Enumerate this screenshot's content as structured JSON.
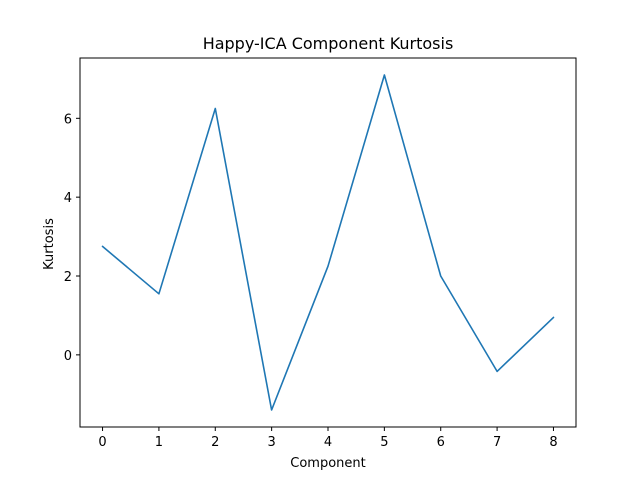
{
  "chart_data": {
    "type": "line",
    "title": "Happy-ICA Component Kurtosis",
    "xlabel": "Component",
    "ylabel": "Kurtosis",
    "x": [
      0,
      1,
      2,
      3,
      4,
      5,
      6,
      7,
      8
    ],
    "series": [
      {
        "values": [
          2.75,
          1.55,
          6.25,
          -1.4,
          2.25,
          7.1,
          2.0,
          -0.42,
          0.95
        ],
        "color": "#1f77b4"
      }
    ],
    "xticks": [
      0,
      1,
      2,
      3,
      4,
      5,
      6,
      7,
      8
    ],
    "yticks": [
      0,
      2,
      4,
      6
    ],
    "xlim": [
      -0.4,
      8.4
    ],
    "ylim": [
      -1.83,
      7.53
    ],
    "grid": false,
    "legend": false
  }
}
